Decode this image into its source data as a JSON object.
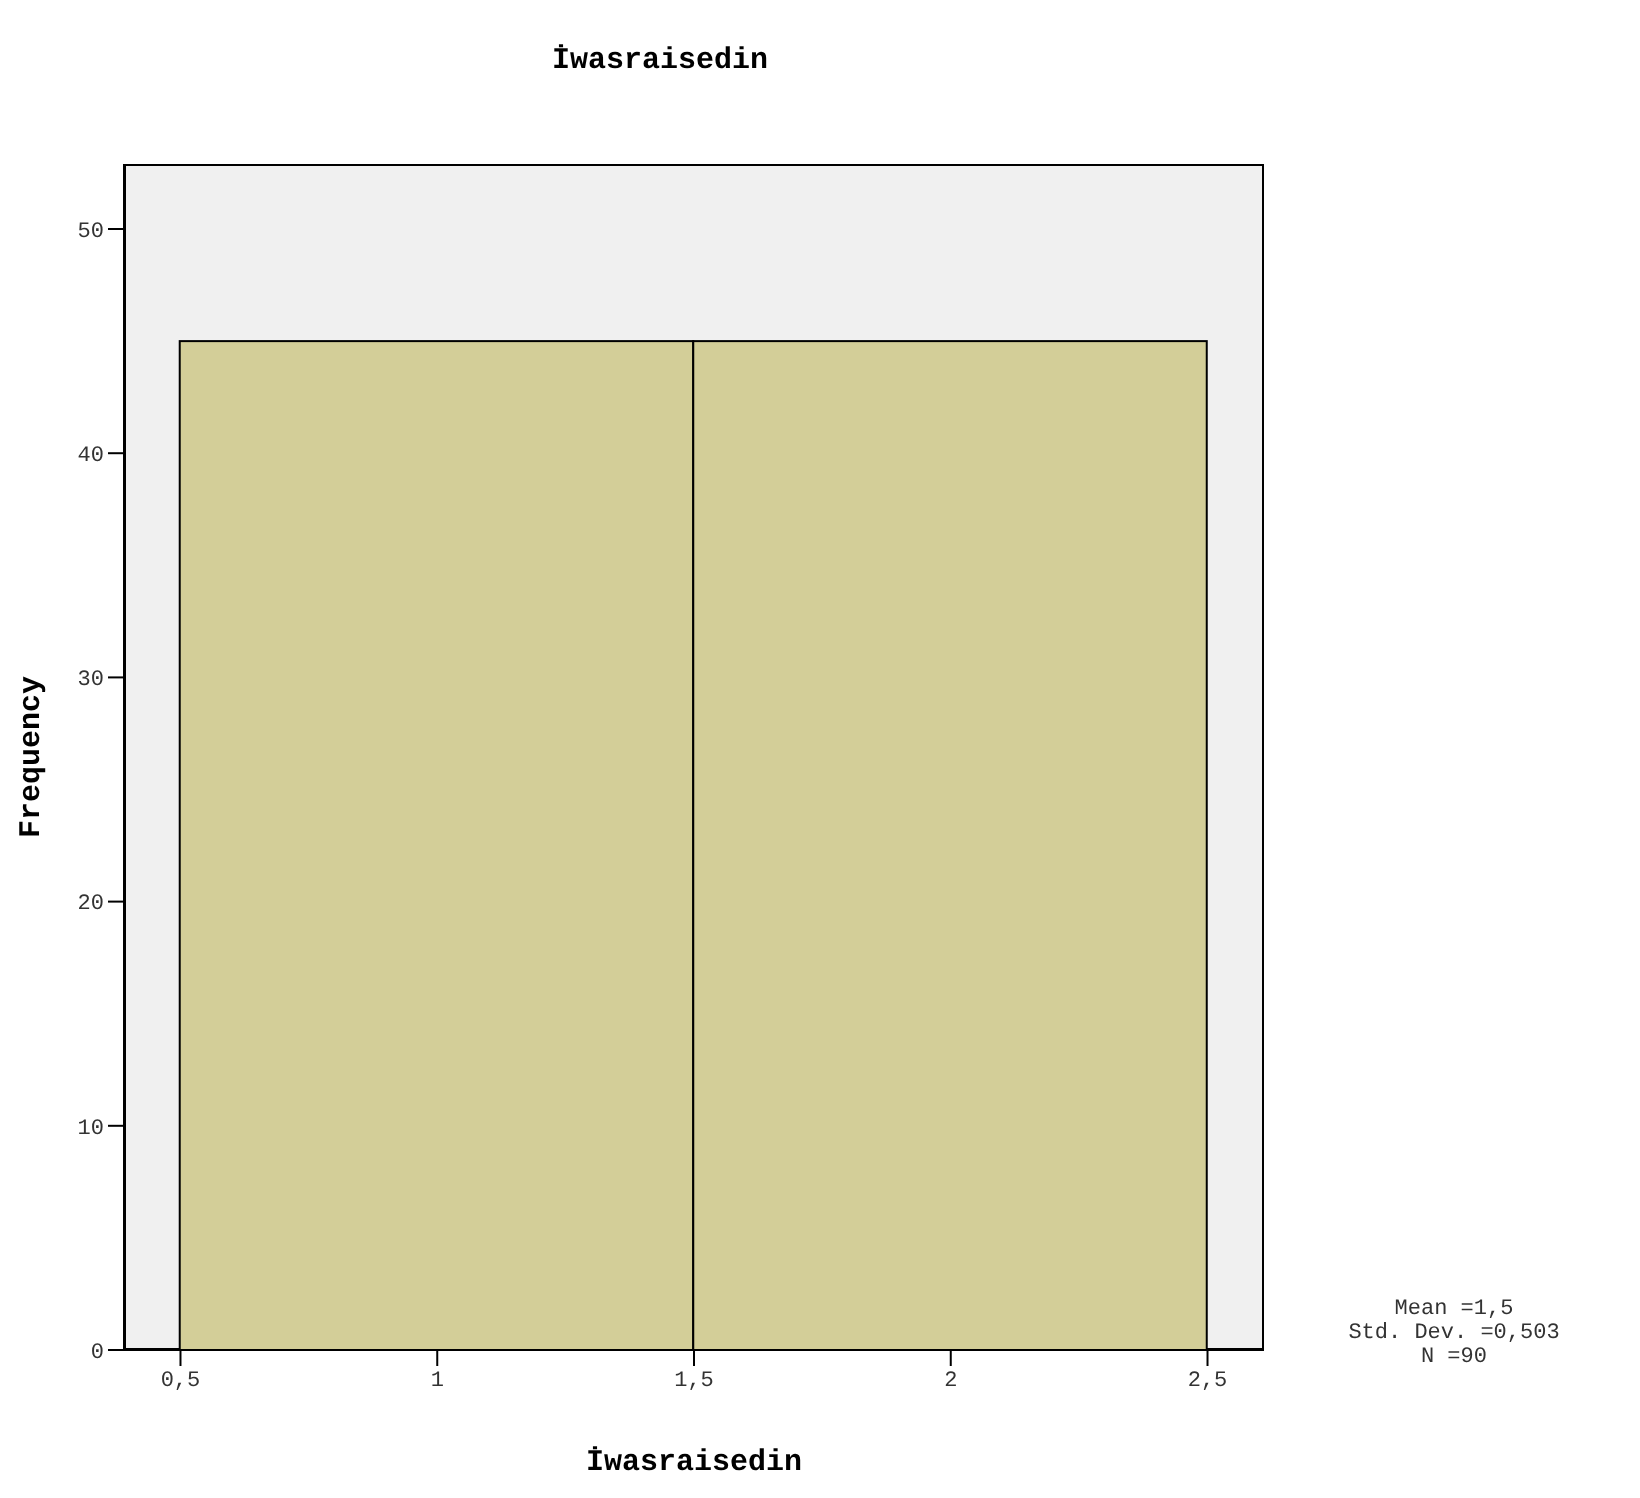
{
  "chart_data": {
    "type": "histogram",
    "title": "İwasraisedin",
    "xlabel": "İwasraisedin",
    "ylabel": "Frequency",
    "bins": [
      0.5,
      1.5,
      2.5
    ],
    "values": [
      45,
      45
    ],
    "color": "#d3ce98",
    "xlim": [
      0.39,
      2.61
    ],
    "ylim": [
      0,
      52.9
    ],
    "xticks": [
      {
        "value": 0.5,
        "label": "0,5"
      },
      1,
      {
        "value": 1.5,
        "label": "1,5"
      },
      2,
      {
        "value": 2.5,
        "label": "2,5"
      }
    ],
    "yticks": [
      0,
      10,
      20,
      30,
      40,
      50
    ],
    "annotations": [
      "Mean =1,5",
      "Std. Dev. =0,503",
      "N =90"
    ]
  }
}
